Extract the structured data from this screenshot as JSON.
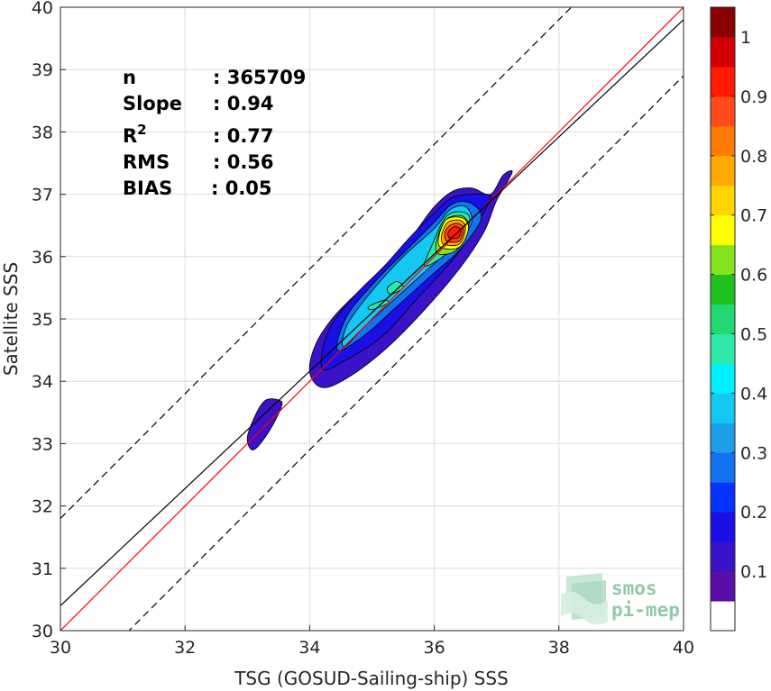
{
  "chart_data": {
    "type": "heatmap",
    "subtype": "density-contour scatter comparison",
    "xlabel": "TSG (GOSUD-Sailing-ship) SSS",
    "ylabel": "Satellite SSS",
    "xlim": [
      30,
      40
    ],
    "ylim": [
      30,
      40
    ],
    "x_ticks": [
      "30",
      "32",
      "34",
      "36",
      "38",
      "40"
    ],
    "y_ticks": [
      "30",
      "31",
      "32",
      "33",
      "34",
      "35",
      "36",
      "37",
      "38",
      "39",
      "40"
    ],
    "grid": true,
    "colorbar": {
      "range": [
        0,
        1
      ],
      "ticks": [
        "0.1",
        "0.2",
        "0.3",
        "0.4",
        "0.5",
        "0.6",
        "0.7",
        "0.8",
        "0.9",
        "1"
      ],
      "levels": [
        {
          "from": 0.0,
          "to": 0.05,
          "color": "#ffffff"
        },
        {
          "from": 0.05,
          "to": 0.1,
          "color": "#5a0fa8"
        },
        {
          "from": 0.1,
          "to": 0.15,
          "color": "#3a13c8"
        },
        {
          "from": 0.15,
          "to": 0.2,
          "color": "#1a10e6"
        },
        {
          "from": 0.2,
          "to": 0.25,
          "color": "#0433ff"
        },
        {
          "from": 0.25,
          "to": 0.3,
          "color": "#1273f0"
        },
        {
          "from": 0.3,
          "to": 0.35,
          "color": "#1c9ee8"
        },
        {
          "from": 0.35,
          "to": 0.4,
          "color": "#14c8f2"
        },
        {
          "from": 0.4,
          "to": 0.45,
          "color": "#00f0ff"
        },
        {
          "from": 0.45,
          "to": 0.5,
          "color": "#2de8a6"
        },
        {
          "from": 0.5,
          "to": 0.55,
          "color": "#22d870"
        },
        {
          "from": 0.55,
          "to": 0.6,
          "color": "#1ec21e"
        },
        {
          "from": 0.6,
          "to": 0.65,
          "color": "#86e21c"
        },
        {
          "from": 0.65,
          "to": 0.7,
          "color": "#ffff00"
        },
        {
          "from": 0.7,
          "to": 0.75,
          "color": "#ffd400"
        },
        {
          "from": 0.75,
          "to": 0.8,
          "color": "#ffa800"
        },
        {
          "from": 0.8,
          "to": 0.85,
          "color": "#ff7a00"
        },
        {
          "from": 0.85,
          "to": 0.9,
          "color": "#ff4a1c"
        },
        {
          "from": 0.9,
          "to": 0.95,
          "color": "#ff1a00"
        },
        {
          "from": 0.95,
          "to": 1.0,
          "color": "#d40000"
        },
        {
          "from": 1.0,
          "to": 1.05,
          "color": "#8b0000"
        }
      ]
    },
    "lines": [
      {
        "name": "identity",
        "color": "#ff0000",
        "style": "solid",
        "slope": 1.0,
        "intercept": 0.0
      },
      {
        "name": "regression",
        "color": "#000000",
        "style": "solid",
        "slope": 0.94,
        "intercept": 2.2
      },
      {
        "name": "upper bound",
        "color": "#000000",
        "style": "dashed",
        "slope": 1.0,
        "intercept": 1.8
      },
      {
        "name": "lower bound",
        "color": "#000000",
        "style": "dashed",
        "slope": 1.0,
        "intercept": -1.1
      }
    ],
    "stats": [
      {
        "label": "n",
        "value": ": 365709"
      },
      {
        "label": "Slope",
        "value": ": 0.94"
      },
      {
        "label": "R",
        "superscript": "2",
        "value": ": 0.77"
      },
      {
        "label": "RMS",
        "value": ": 0.56"
      },
      {
        "label": "BIAS",
        "value": ": 0.05"
      }
    ],
    "contours": [
      {
        "level": 0.05,
        "color": "#3a13c8",
        "polygon": [
          [
            34.0,
            34.15
          ],
          [
            34.2,
            33.9
          ],
          [
            34.6,
            34.05
          ],
          [
            35.2,
            34.5
          ],
          [
            35.8,
            35.1
          ],
          [
            36.4,
            35.8
          ],
          [
            36.8,
            36.4
          ],
          [
            37.0,
            36.9
          ],
          [
            37.25,
            37.35
          ],
          [
            37.1,
            37.3
          ],
          [
            36.9,
            37.0
          ],
          [
            36.6,
            37.1
          ],
          [
            36.3,
            37.05
          ],
          [
            36.0,
            36.8
          ],
          [
            35.7,
            36.4
          ],
          [
            35.3,
            35.9
          ],
          [
            34.85,
            35.5
          ],
          [
            34.4,
            35.05
          ],
          [
            34.1,
            34.6
          ]
        ]
      },
      {
        "level": 0.05,
        "color": "#3a13c8",
        "polygon": [
          [
            33.0,
            33.1
          ],
          [
            33.1,
            32.9
          ],
          [
            33.35,
            33.2
          ],
          [
            33.55,
            33.6
          ],
          [
            33.5,
            33.7
          ],
          [
            33.3,
            33.7
          ],
          [
            33.15,
            33.5
          ]
        ]
      },
      {
        "level": 0.1,
        "color": "#1a10e6",
        "polygon": [
          [
            34.2,
            34.2
          ],
          [
            34.6,
            34.35
          ],
          [
            35.2,
            34.75
          ],
          [
            35.7,
            35.3
          ],
          [
            36.3,
            35.95
          ],
          [
            36.7,
            36.55
          ],
          [
            36.9,
            36.95
          ],
          [
            36.7,
            37.0
          ],
          [
            36.3,
            36.95
          ],
          [
            36.0,
            36.7
          ],
          [
            35.6,
            36.3
          ],
          [
            35.2,
            35.85
          ],
          [
            34.7,
            35.35
          ],
          [
            34.3,
            34.8
          ]
        ]
      },
      {
        "level": 0.2,
        "color": "#1273f0",
        "polygon": [
          [
            34.45,
            34.5
          ],
          [
            34.9,
            34.75
          ],
          [
            35.4,
            35.2
          ],
          [
            35.9,
            35.65
          ],
          [
            36.4,
            36.1
          ],
          [
            36.75,
            36.6
          ],
          [
            36.6,
            36.85
          ],
          [
            36.3,
            36.85
          ],
          [
            36.0,
            36.55
          ],
          [
            35.6,
            36.15
          ],
          [
            35.1,
            35.65
          ],
          [
            34.6,
            35.05
          ]
        ]
      },
      {
        "level": 0.3,
        "color": "#14c8f2",
        "polygon": [
          [
            34.55,
            34.55
          ],
          [
            34.9,
            34.9
          ],
          [
            35.4,
            35.35
          ],
          [
            35.9,
            35.8
          ],
          [
            36.35,
            36.2
          ],
          [
            36.6,
            36.55
          ],
          [
            36.5,
            36.8
          ],
          [
            36.25,
            36.75
          ],
          [
            36.0,
            36.45
          ],
          [
            35.5,
            36.0
          ],
          [
            35.0,
            35.45
          ],
          [
            34.6,
            34.9
          ]
        ]
      },
      {
        "level": 0.4,
        "color": "#2de8a6",
        "polygon": [
          [
            35.0,
            35.15
          ],
          [
            35.25,
            35.25
          ],
          [
            35.2,
            35.3
          ],
          [
            34.95,
            35.2
          ]
        ]
      },
      {
        "level": 0.4,
        "color": "#2de8a6",
        "polygon": [
          [
            35.3,
            35.4
          ],
          [
            35.5,
            35.5
          ],
          [
            35.4,
            35.6
          ],
          [
            35.25,
            35.5
          ]
        ]
      },
      {
        "level": 0.4,
        "color": "#2de8a6",
        "polygon": [
          [
            35.85,
            35.85
          ],
          [
            36.2,
            36.05
          ],
          [
            36.55,
            36.5
          ],
          [
            36.5,
            36.7
          ],
          [
            36.2,
            36.65
          ],
          [
            35.95,
            36.15
          ]
        ]
      },
      {
        "level": 0.5,
        "color": "#86e21c",
        "polygon": [
          [
            36.05,
            36.05
          ],
          [
            36.35,
            36.1
          ],
          [
            36.55,
            36.45
          ],
          [
            36.45,
            36.65
          ],
          [
            36.2,
            36.6
          ],
          [
            36.05,
            36.3
          ]
        ]
      },
      {
        "level": 0.6,
        "color": "#ffff00",
        "polygon": [
          [
            36.1,
            36.15
          ],
          [
            36.4,
            36.15
          ],
          [
            36.55,
            36.45
          ],
          [
            36.45,
            36.62
          ],
          [
            36.2,
            36.6
          ],
          [
            36.08,
            36.35
          ]
        ]
      },
      {
        "level": 0.7,
        "color": "#ffa800",
        "polygon": [
          [
            36.15,
            36.2
          ],
          [
            36.4,
            36.2
          ],
          [
            36.5,
            36.45
          ],
          [
            36.42,
            36.58
          ],
          [
            36.22,
            36.55
          ],
          [
            36.12,
            36.35
          ]
        ]
      },
      {
        "level": 0.8,
        "color": "#ff4a1c",
        "polygon": [
          [
            36.2,
            36.25
          ],
          [
            36.4,
            36.25
          ],
          [
            36.47,
            36.45
          ],
          [
            36.38,
            36.53
          ],
          [
            36.25,
            36.5
          ],
          [
            36.17,
            36.38
          ]
        ]
      },
      {
        "level": 0.9,
        "color": "#ff1a00",
        "polygon": [
          [
            36.25,
            36.3
          ],
          [
            36.38,
            36.3
          ],
          [
            36.43,
            36.42
          ],
          [
            36.35,
            36.48
          ],
          [
            36.27,
            36.45
          ],
          [
            36.22,
            36.37
          ]
        ]
      }
    ],
    "logo_text": [
      "smos",
      "pi-mep"
    ]
  }
}
